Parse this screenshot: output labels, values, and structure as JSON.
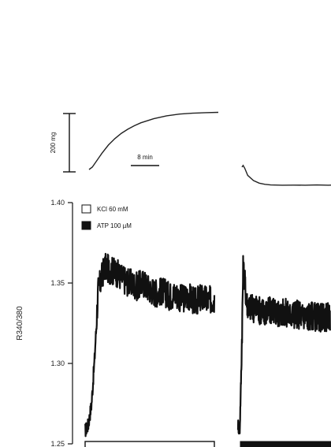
{
  "chart_data": {
    "type": "line",
    "ylabel": "R340/380",
    "ylim": [
      1.25,
      1.4
    ],
    "yticks": [
      {
        "value": 1.4,
        "label": "1.40"
      },
      {
        "value": 1.35,
        "label": "1.35"
      },
      {
        "value": 1.3,
        "label": "1.30"
      },
      {
        "value": 1.25,
        "label": "1.25"
      }
    ],
    "legend": {
      "placement": "top-left",
      "entries": [
        {
          "label": "KCl 60 mM",
          "fill": "#ffffff"
        },
        {
          "label": "ATP 100 µM",
          "fill": "#111111"
        }
      ]
    },
    "scale_bars": {
      "force_label": "200 mg",
      "time_label": "8 min"
    },
    "force_traces": [
      {
        "name": "KCl 60 mM",
        "x_min": [
          0,
          0.5,
          1,
          2,
          3,
          4,
          5,
          6,
          7,
          8,
          10,
          12,
          14,
          16,
          18,
          20
        ],
        "y_mg": [
          0,
          40,
          120,
          280,
          420,
          530,
          620,
          690,
          750,
          800,
          870,
          920,
          950,
          965,
          975,
          980
        ]
      },
      {
        "name": "ATP 100 µM",
        "x_min": [
          0,
          0.2,
          0.5,
          1,
          2,
          3,
          4,
          5,
          7,
          9,
          11,
          13,
          15,
          16
        ],
        "y_mg": [
          0,
          30,
          -20,
          -140,
          -230,
          -275,
          -295,
          -305,
          -310,
          -308,
          -310,
          -305,
          -310,
          -308
        ]
      }
    ],
    "ratio_traces": [
      {
        "name": "KCl 60 mM",
        "x_min": [
          0,
          0.5,
          1,
          1.5,
          2,
          3,
          4,
          5,
          6,
          7,
          8,
          9,
          10,
          11,
          12,
          13,
          14,
          15,
          16,
          17,
          18,
          19,
          20
        ],
        "y": [
          1.258,
          1.262,
          1.275,
          1.305,
          1.345,
          1.36,
          1.358,
          1.356,
          1.352,
          1.35,
          1.348,
          1.35,
          1.346,
          1.344,
          1.345,
          1.342,
          1.343,
          1.34,
          1.342,
          1.338,
          1.341,
          1.339,
          1.34
        ]
      },
      {
        "name": "ATP 100 µM",
        "x_min": [
          0,
          0.3,
          0.6,
          0.9,
          1.2,
          1.5,
          2,
          3,
          4,
          5,
          6,
          7,
          8,
          9,
          10,
          11,
          12,
          13,
          14,
          15,
          16
        ],
        "y": [
          1.262,
          1.258,
          1.3,
          1.36,
          1.35,
          1.338,
          1.335,
          1.334,
          1.333,
          1.332,
          1.333,
          1.331,
          1.332,
          1.33,
          1.331,
          1.33,
          1.329,
          1.33,
          1.328,
          1.329,
          1.329
        ]
      }
    ]
  }
}
